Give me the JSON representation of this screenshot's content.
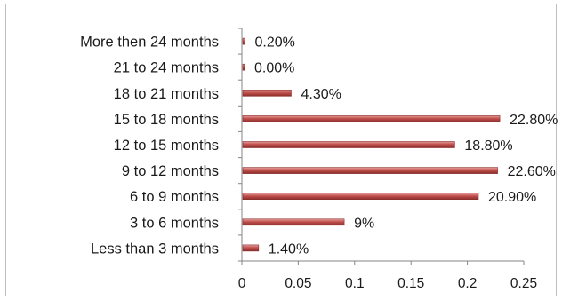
{
  "chart_data": {
    "type": "bar",
    "orientation": "horizontal",
    "title": "",
    "xlabel": "",
    "ylabel": "",
    "categories": [
      "Less than 3 months",
      "3 to 6 months",
      "6 to 9 months",
      "9 to 12 months",
      "12 to 15 months",
      "15 to 18 months",
      "18 to 21 months",
      "21 to 24 months",
      "More then 24 months"
    ],
    "values": [
      0.014,
      0.09,
      0.209,
      0.226,
      0.188,
      0.228,
      0.043,
      0.0,
      0.002
    ],
    "data_labels": [
      "1.40%",
      "9%",
      "20.90%",
      "22.60%",
      "18.80%",
      "22.80%",
      "4.30%",
      "0.00%",
      "0.20%"
    ],
    "xlim": [
      0,
      0.25
    ],
    "x_ticks": [
      0,
      0.05,
      0.1,
      0.15,
      0.2,
      0.25
    ],
    "x_tick_labels": [
      "0",
      "0.05",
      "0.1",
      "0.15",
      "0.2",
      "0.25"
    ],
    "grid": false,
    "legend": "none",
    "bar_color": "#c0504d",
    "bar_highlight": "#e8a09e",
    "bar_shadow": "#8b2e2b"
  }
}
